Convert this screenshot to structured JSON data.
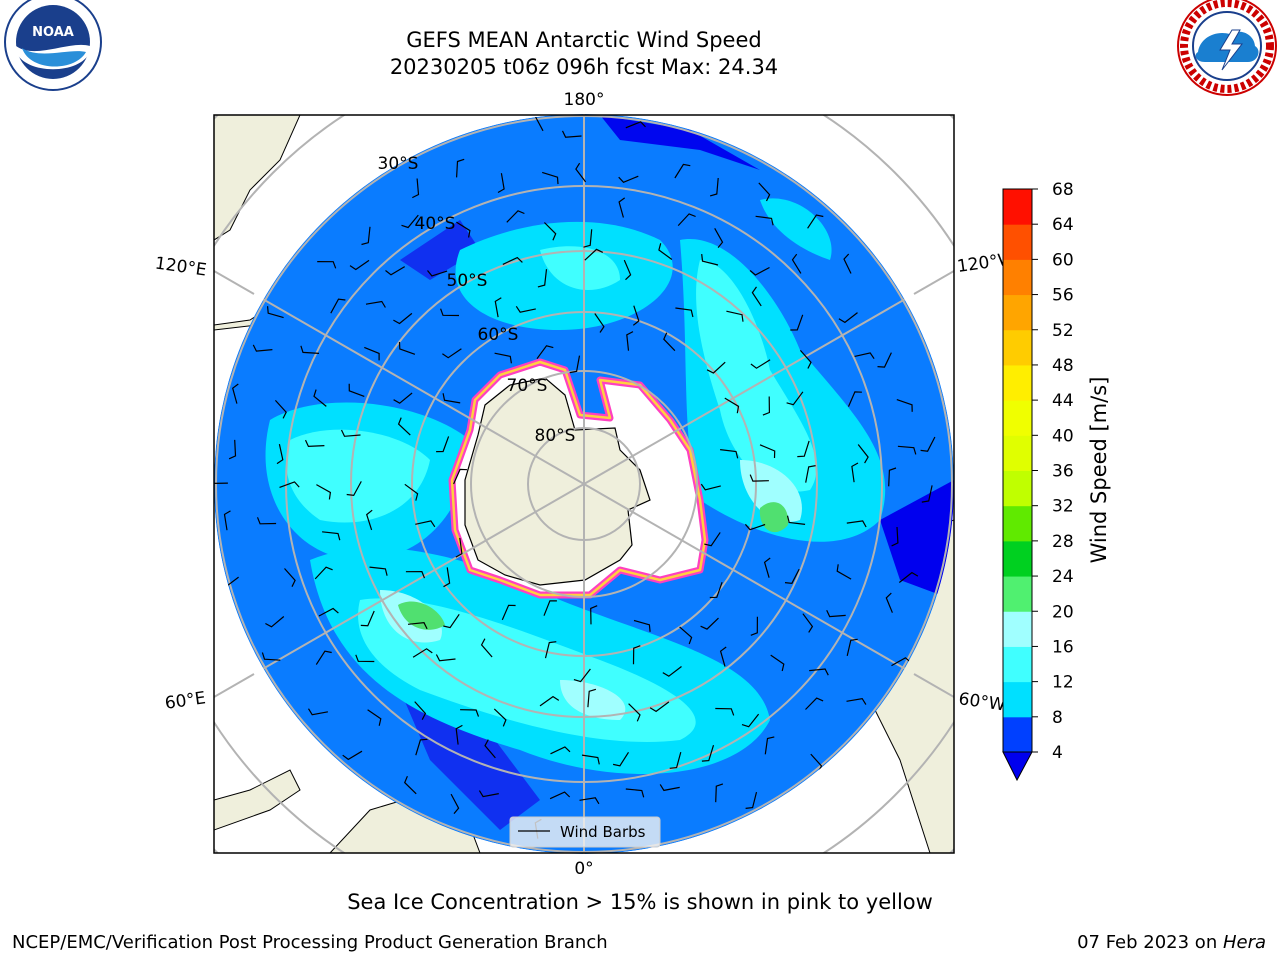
{
  "title": {
    "line1": "GEFS MEAN Antarctic Wind Speed",
    "line2": "20230205 t06z 096h fcst   Max: 24.34"
  },
  "map": {
    "projection": "south-polar-stereographic",
    "meridian_labels": [
      "180°",
      "120°E",
      "120°W",
      "60°E",
      "60°W",
      "0°"
    ],
    "parallel_labels": [
      "30°S",
      "40°S",
      "50°S",
      "60°S",
      "70°S",
      "80°S"
    ],
    "legend_label": "Wind Barbs",
    "overlay_note": "Sea Ice Concentration > 15% is shown in pink to yellow"
  },
  "colorbar": {
    "label": "Wind Speed [m/s]",
    "ticks": [
      "4",
      "8",
      "12",
      "16",
      "20",
      "24",
      "28",
      "32",
      "36",
      "40",
      "44",
      "48",
      "52",
      "56",
      "60",
      "64",
      "68"
    ],
    "colors": [
      "#0040ff",
      "#00e0ff",
      "#40ffff",
      "#a0ffff",
      "#50f070",
      "#00d020",
      "#60ea00",
      "#c0ff00",
      "#e0ff00",
      "#f0ff00",
      "#ffee00",
      "#ffcc00",
      "#ffa500",
      "#ff8000",
      "#ff5000",
      "#ff1000"
    ],
    "under_color": "#0000ee"
  },
  "logos": {
    "left": "NOAA",
    "right": "NATIONAL WEATHER SERVICE"
  },
  "footer": {
    "left": "NCEP/EMC/Verification Post Processing Product Generation Branch",
    "right_date": "07 Feb 2023 on ",
    "right_host": "Hera"
  }
}
